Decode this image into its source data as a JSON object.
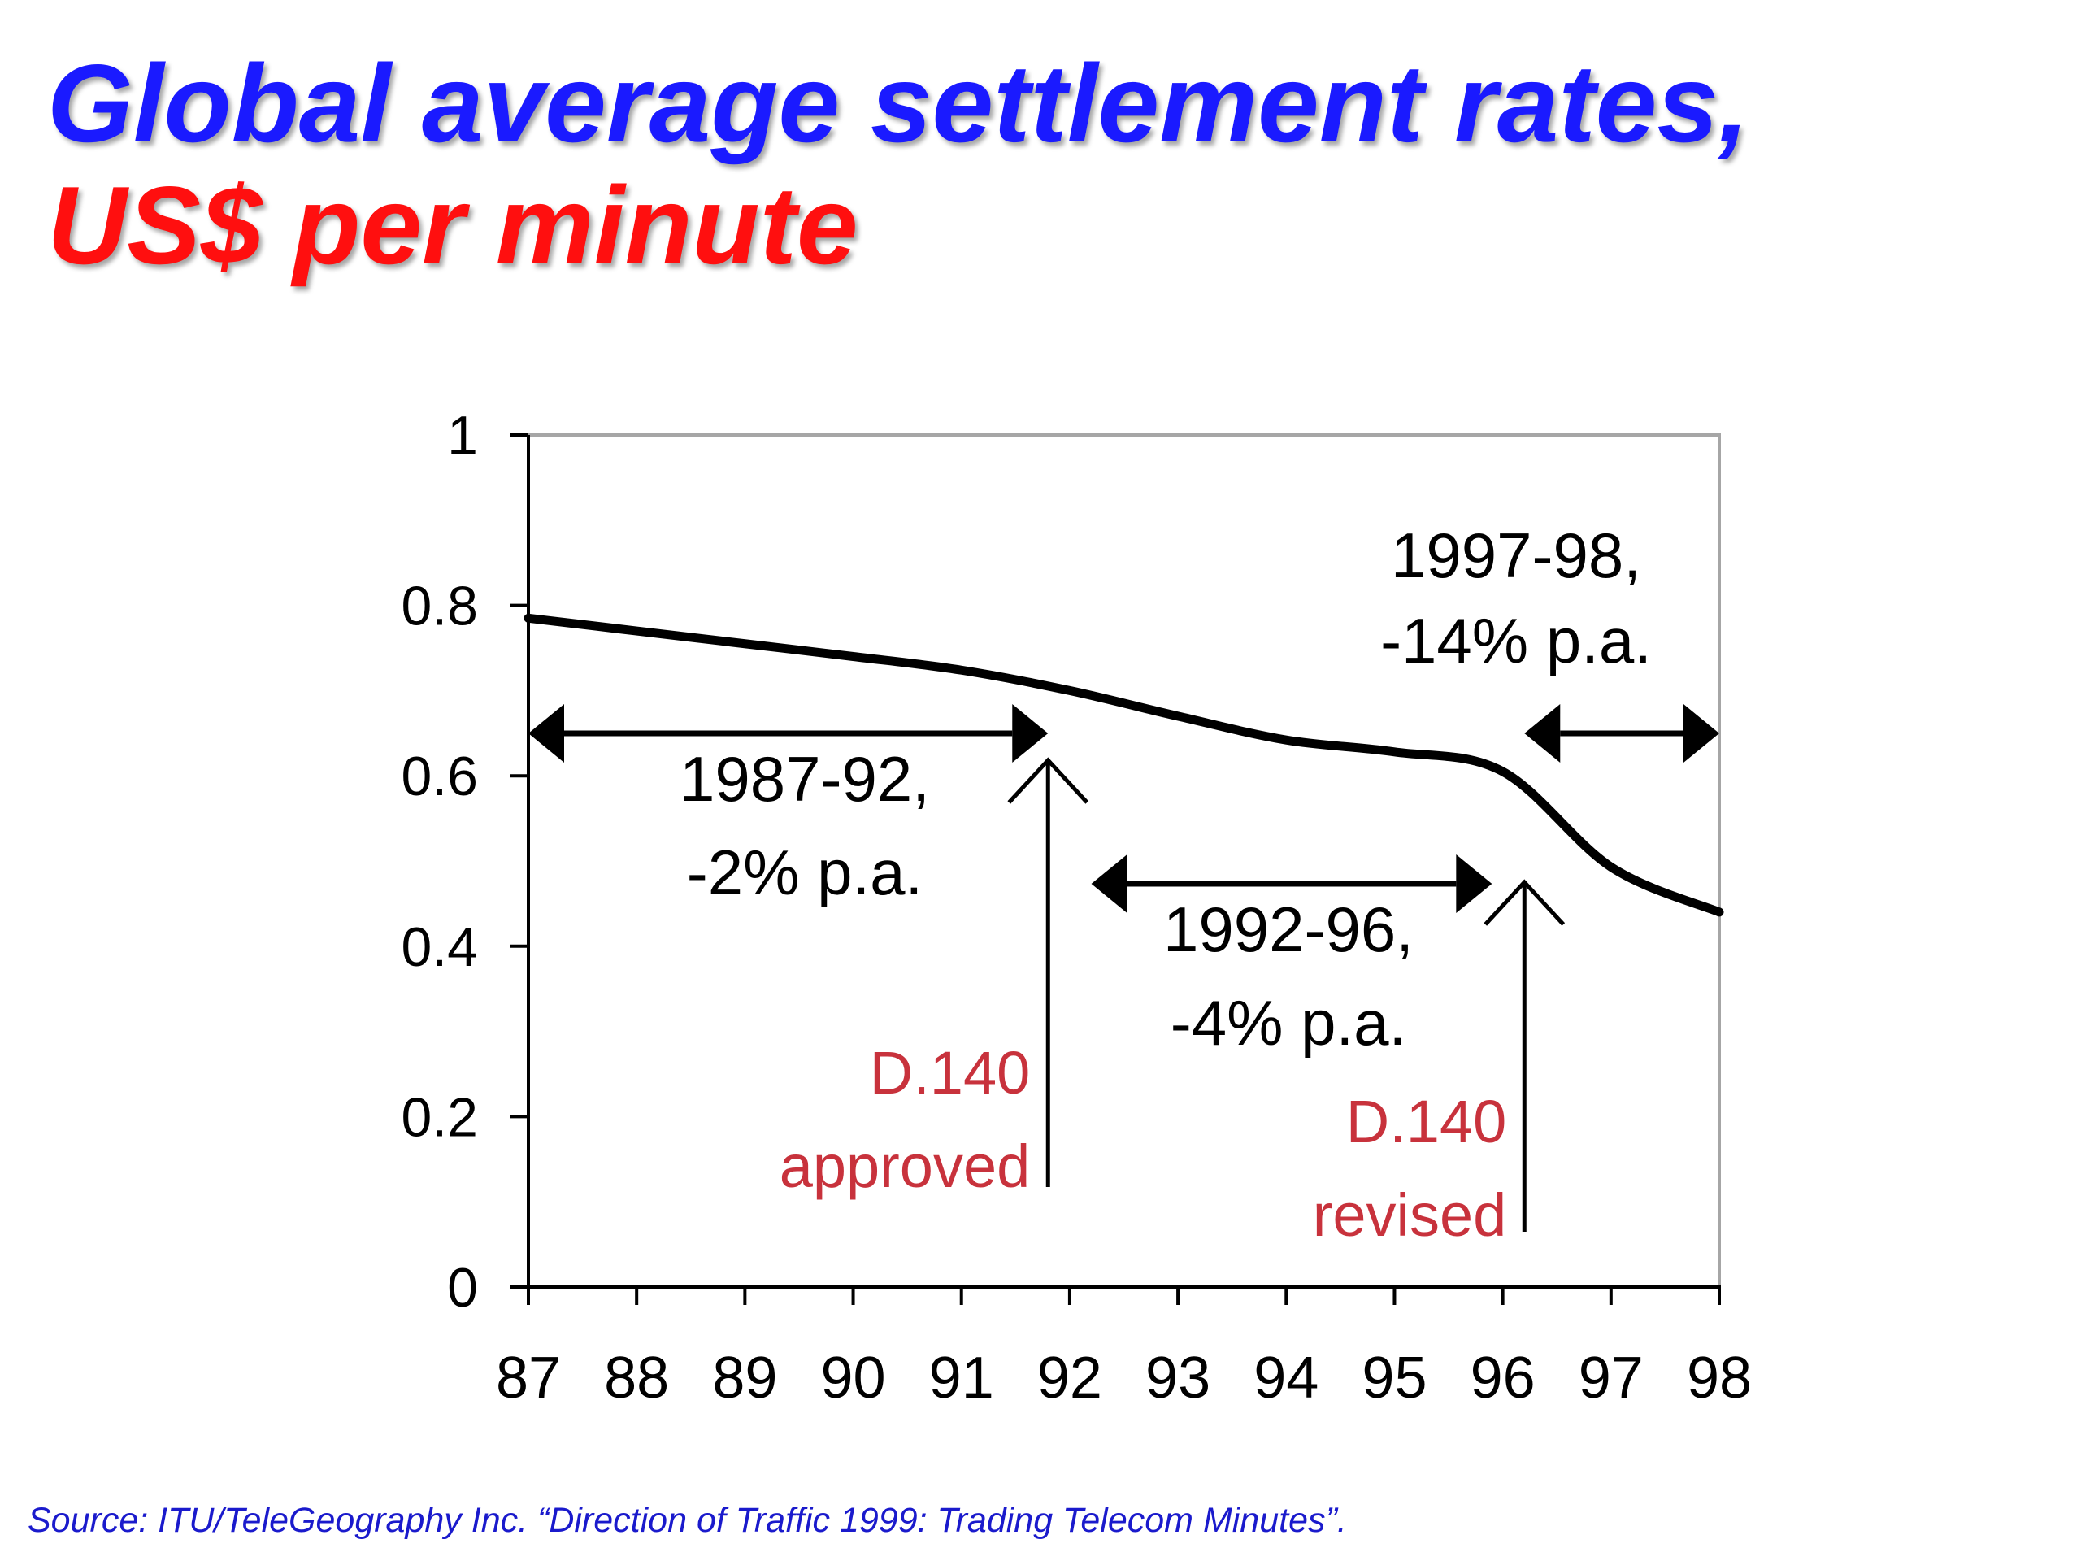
{
  "title": {
    "line1": "Global average settlement rates,",
    "line2": "US$ per minute"
  },
  "source": "Source: ITU/TeleGeography Inc. “Direction of Traffic 1999: Trading Telecom Minutes”.",
  "colors": {
    "title_line1": "#1a1aff",
    "title_line2": "#ff0f0f",
    "annotation_red": "#c8323c",
    "line": "#000000",
    "frame": "#a6a6a6",
    "source": "#1a1acc"
  },
  "chart_data": {
    "type": "line",
    "title": "Global average settlement rates, US$ per minute",
    "xlabel": "",
    "ylabel": "",
    "x": [
      "87",
      "88",
      "89",
      "90",
      "91",
      "92",
      "93",
      "94",
      "95",
      "96",
      "97",
      "98"
    ],
    "xlim": [
      87,
      98
    ],
    "ylim": [
      0,
      1
    ],
    "yticks": [
      "0",
      "0.2",
      "0.4",
      "0.6",
      "0.8",
      "1"
    ],
    "grid": false,
    "legend": "none",
    "series": [
      {
        "values": [
          0.785,
          0.77,
          0.755,
          0.74,
          0.724,
          0.7,
          0.67,
          0.642,
          0.628,
          0.605,
          0.493,
          0.44
        ]
      }
    ],
    "annotations": {
      "periods": [
        {
          "line1": "1987-92,",
          "line2": "-2% p.a.",
          "from": 87,
          "to": 91.8
        },
        {
          "line1": "1992-96,",
          "line2": "-4% p.a.",
          "from": 92.2,
          "to": 95.9
        },
        {
          "line1": "1997-98,",
          "line2": "-14% p.a.",
          "from": 96.2,
          "to": 98
        }
      ],
      "events": [
        {
          "line1": "D.140",
          "line2": "approved",
          "x": 91.8
        },
        {
          "line1": "D.140",
          "line2": "revised",
          "x": 96.2
        }
      ]
    }
  }
}
